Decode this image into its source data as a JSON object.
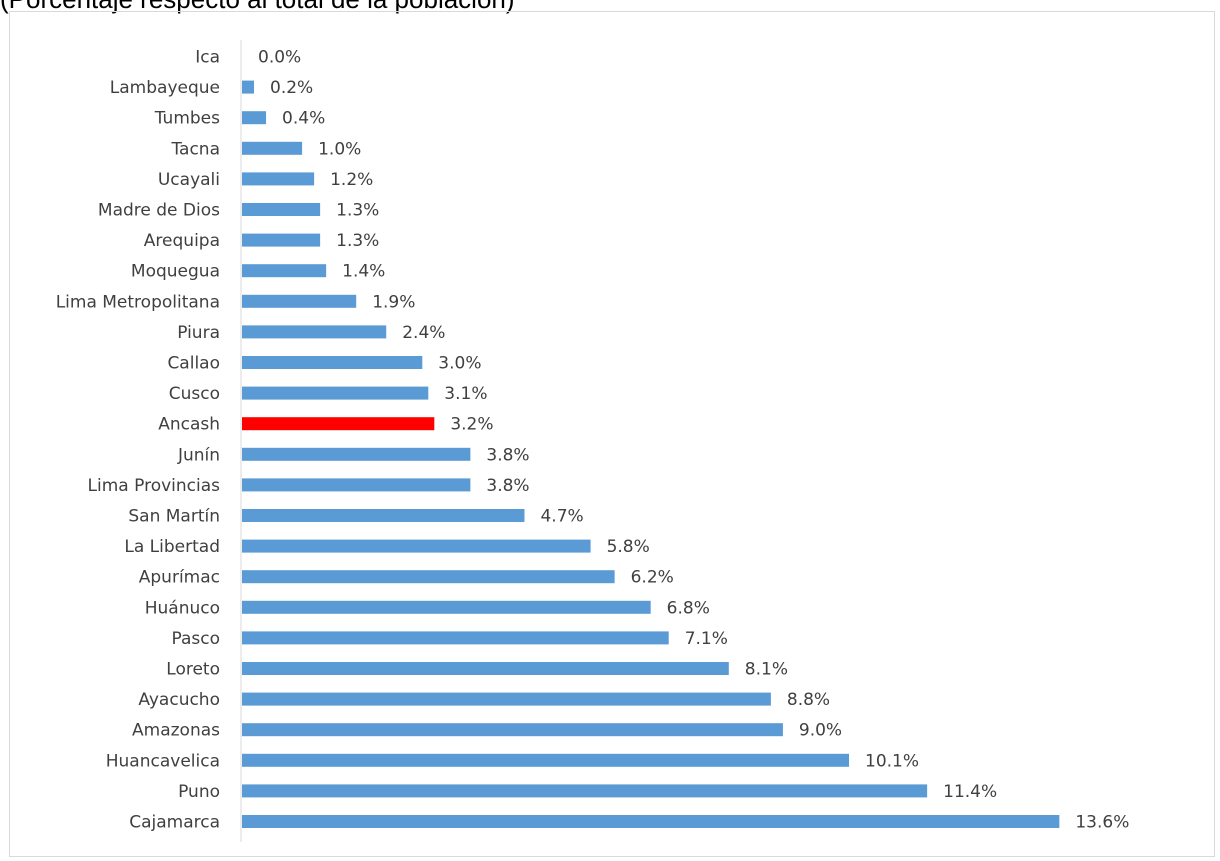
{
  "chart_data": {
    "type": "bar",
    "orientation": "horizontal",
    "title": "(Porcentaje respecto al total de la población)",
    "categories": [
      "Ica",
      "Lambayeque",
      "Tumbes",
      "Tacna",
      "Ucayali",
      "Madre de Dios",
      "Arequipa",
      "Moquegua",
      "Lima Metropolitana",
      "Piura",
      "Callao",
      "Cusco",
      "Ancash",
      "Junín",
      "Lima Provincias",
      "San Martín",
      "La Libertad",
      "Apurímac",
      "Huánuco",
      "Pasco",
      "Loreto",
      "Ayacucho",
      "Amazonas",
      "Huancavelica",
      "Puno",
      "Cajamarca"
    ],
    "values": [
      0.0,
      0.2,
      0.4,
      1.0,
      1.2,
      1.3,
      1.3,
      1.4,
      1.9,
      2.4,
      3.0,
      3.1,
      3.2,
      3.8,
      3.8,
      4.7,
      5.8,
      6.2,
      6.8,
      7.1,
      8.1,
      8.8,
      9.0,
      10.1,
      11.4,
      13.6
    ],
    "value_labels": [
      "0.0%",
      "0.2%",
      "0.4%",
      "1.0%",
      "1.2%",
      "1.3%",
      "1.3%",
      "1.4%",
      "1.9%",
      "2.4%",
      "3.0%",
      "3.1%",
      "3.2%",
      "3.8%",
      "3.8%",
      "4.7%",
      "5.8%",
      "6.2%",
      "6.8%",
      "7.1%",
      "8.1%",
      "8.8%",
      "9.0%",
      "10.1%",
      "11.4%",
      "13.6%"
    ],
    "highlight_category": "Ancash",
    "bar_color": "#5b9bd5",
    "highlight_color": "#ff0000",
    "xlim": [
      0,
      14
    ],
    "grid": false,
    "legend": "none"
  }
}
